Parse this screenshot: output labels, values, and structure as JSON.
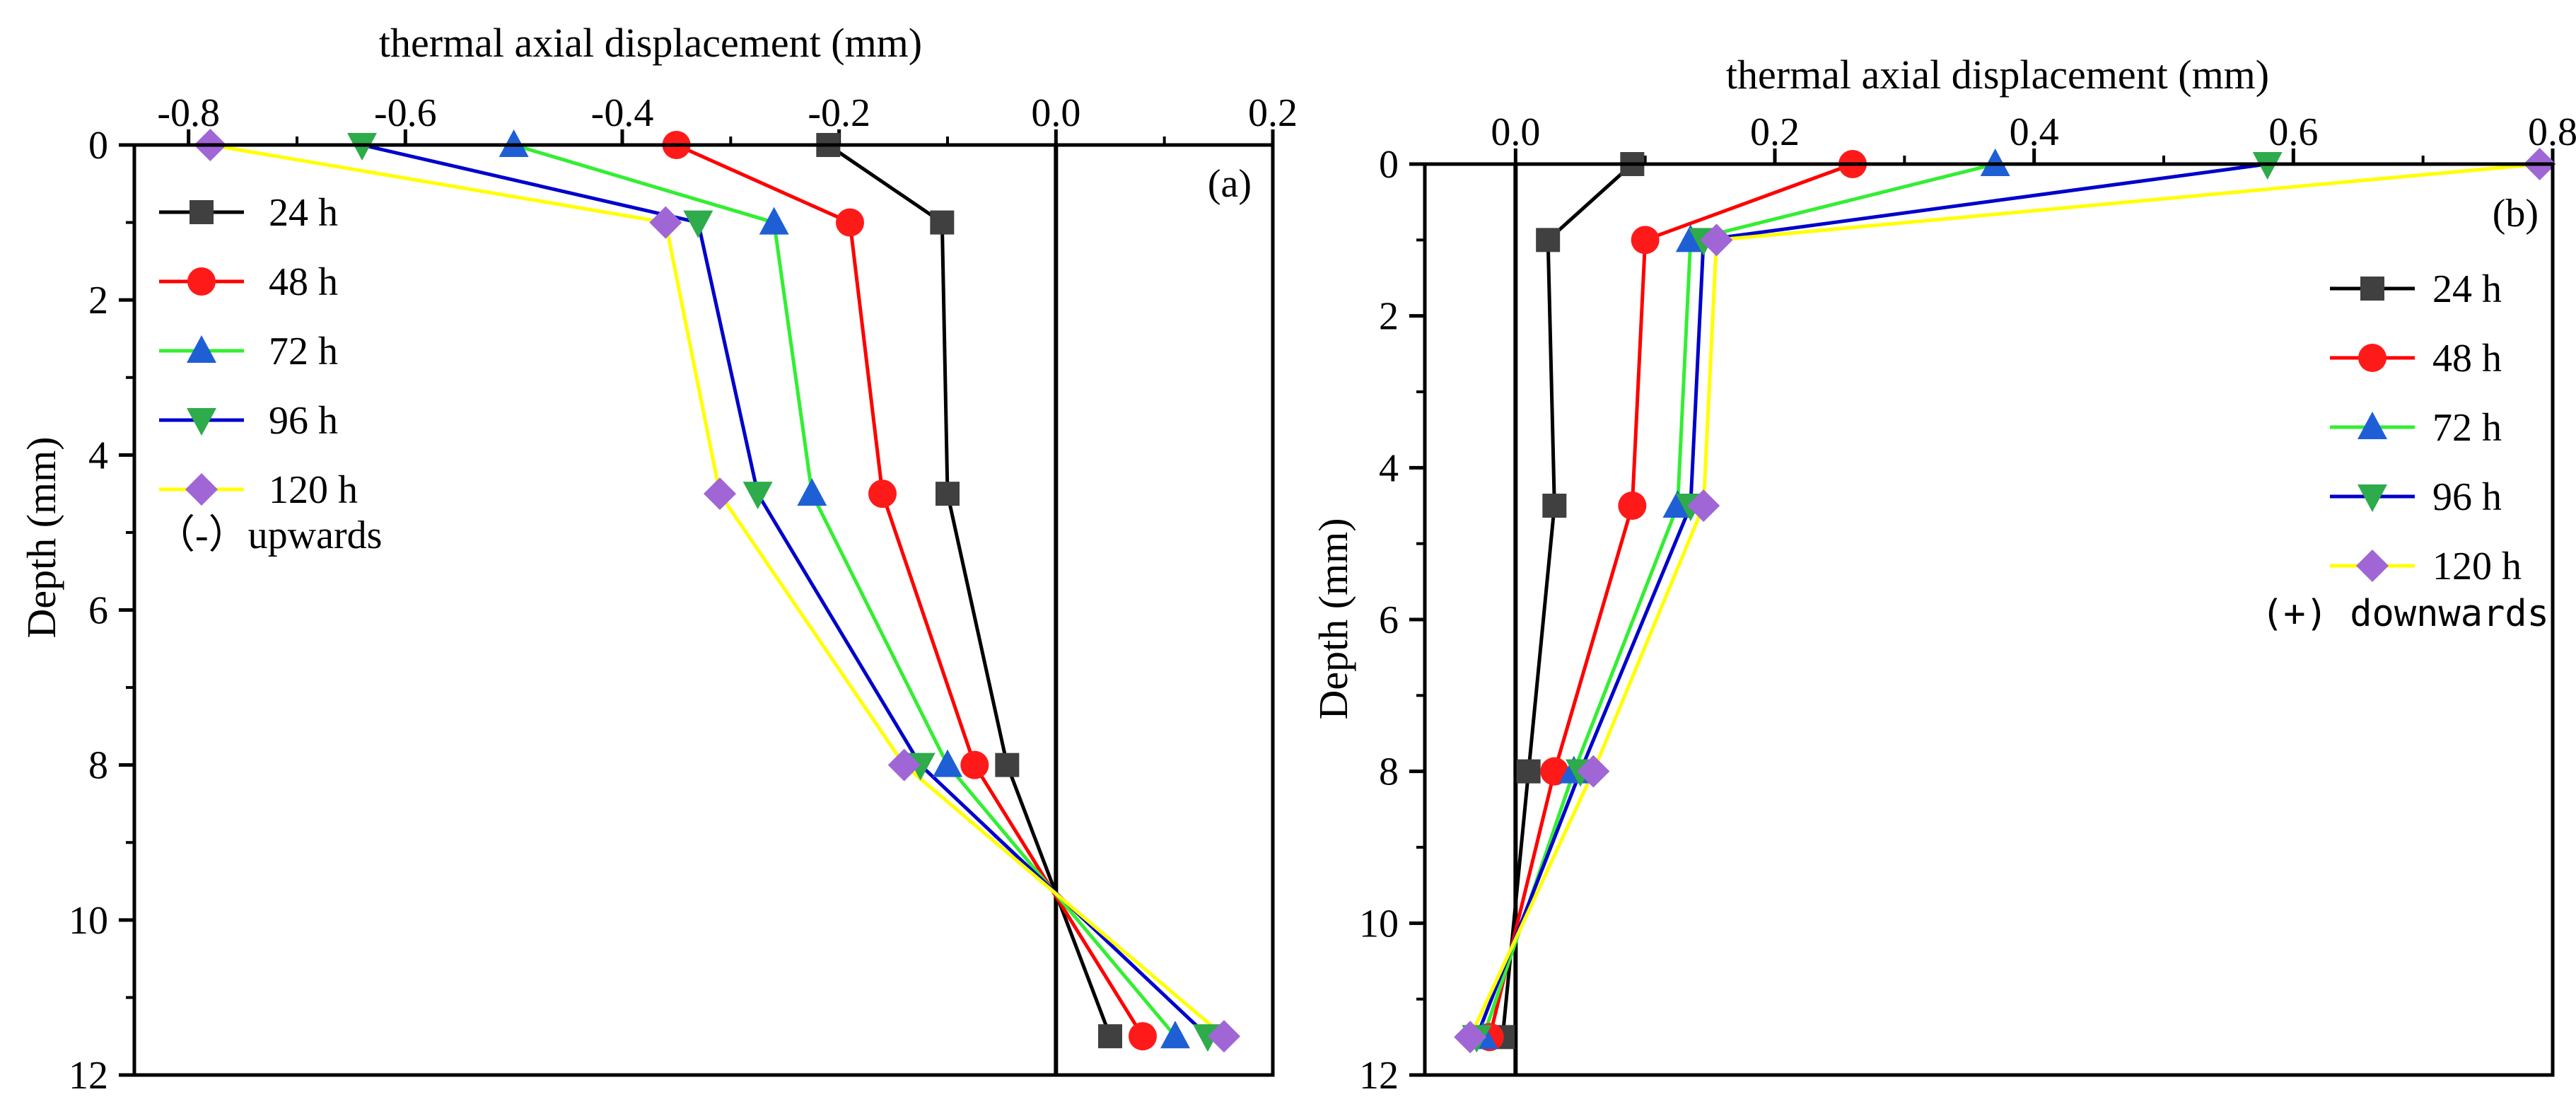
{
  "chart_data": [
    {
      "type": "line",
      "panel_tag": "(a)",
      "xlabel": "thermal axial displacement (mm)",
      "ylabel": "Depth (mm)",
      "xlim": [
        -0.85,
        0.2
      ],
      "ylim": [
        12,
        0
      ],
      "y_inverted": true,
      "x_axis_position": "top",
      "xticks": [
        -0.8,
        -0.6,
        -0.4,
        -0.2,
        0.0,
        0.2
      ],
      "xtick_labels": [
        "-0.8",
        "-0.6",
        "-0.4",
        "-0.2",
        "0.0",
        "0.2"
      ],
      "yticks": [
        0,
        2,
        4,
        6,
        8,
        10,
        12
      ],
      "ytick_labels": [
        "0",
        "2",
        "4",
        "6",
        "8",
        "10",
        "12"
      ],
      "zero_line_x": 0.0,
      "legend_position": "top-left",
      "annotation": "（-）upwards",
      "depths": [
        0,
        1,
        4.5,
        8,
        11.5
      ],
      "series": [
        {
          "name": "24 h",
          "color": "#404040",
          "marker": "square",
          "values": [
            -0.21,
            -0.105,
            -0.1,
            -0.045,
            0.05
          ]
        },
        {
          "name": "48 h",
          "color": "#ff1a1a",
          "marker": "circle",
          "values": [
            -0.35,
            -0.19,
            -0.16,
            -0.075,
            0.08
          ]
        },
        {
          "name": "72 h",
          "color": "#1f5fd6",
          "marker": "triangle-up",
          "values": [
            -0.5,
            -0.26,
            -0.225,
            -0.1,
            0.11
          ]
        },
        {
          "name": "96 h",
          "color": "#2eab4a",
          "marker": "triangle-down",
          "values": [
            -0.64,
            -0.33,
            -0.275,
            -0.125,
            0.14
          ]
        },
        {
          "name": "120 h",
          "color": "#a066d6",
          "marker": "diamond",
          "values": [
            -0.78,
            -0.36,
            -0.31,
            -0.14,
            0.155
          ]
        }
      ],
      "series_line_colors": [
        "#000000",
        "#ff0000",
        "#33ee33",
        "#0000cc",
        "#ffff00"
      ]
    },
    {
      "type": "line",
      "panel_tag": "(b)",
      "xlabel": "thermal axial displacement (mm)",
      "ylabel": "Depth (mm)",
      "xlim": [
        -0.07,
        0.8
      ],
      "ylim": [
        12,
        0
      ],
      "y_inverted": true,
      "x_axis_position": "top",
      "xticks": [
        0.0,
        0.2,
        0.4,
        0.6,
        0.8
      ],
      "xtick_labels": [
        "0.0",
        "0.2",
        "0.4",
        "0.6",
        "0.8"
      ],
      "yticks": [
        0,
        2,
        4,
        6,
        8,
        10,
        12
      ],
      "ytick_labels": [
        "0",
        "2",
        "4",
        "6",
        "8",
        "10",
        "12"
      ],
      "zero_line_x": 0.0,
      "legend_position": "right",
      "annotation": "(+) downwards",
      "depths": [
        0,
        1,
        4.5,
        8,
        11.5
      ],
      "series": [
        {
          "name": "24 h",
          "color": "#404040",
          "marker": "square",
          "values": [
            0.09,
            0.025,
            0.03,
            0.01,
            -0.01
          ]
        },
        {
          "name": "48 h",
          "color": "#ff1a1a",
          "marker": "circle",
          "values": [
            0.26,
            0.1,
            0.09,
            0.03,
            -0.02
          ]
        },
        {
          "name": "72 h",
          "color": "#1f5fd6",
          "marker": "triangle-up",
          "values": [
            0.37,
            0.135,
            0.125,
            0.045,
            -0.025
          ]
        },
        {
          "name": "96 h",
          "color": "#2eab4a",
          "marker": "triangle-down",
          "values": [
            0.58,
            0.145,
            0.135,
            0.05,
            -0.03
          ]
        },
        {
          "name": "120 h",
          "color": "#a066d6",
          "marker": "diamond",
          "values": [
            0.79,
            0.155,
            0.145,
            0.06,
            -0.035
          ]
        }
      ],
      "series_line_colors": [
        "#000000",
        "#ff0000",
        "#33ee33",
        "#0000cc",
        "#ffff00"
      ]
    }
  ]
}
